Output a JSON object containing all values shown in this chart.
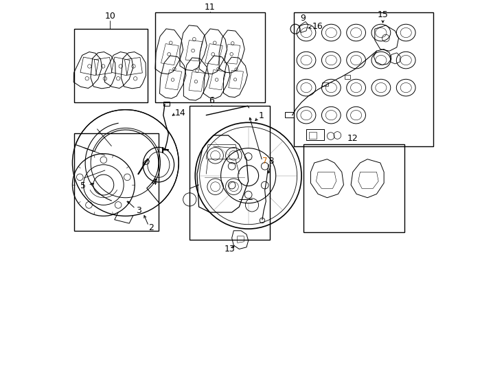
{
  "background_color": "#ffffff",
  "line_color": "#000000",
  "fig_width": 7.34,
  "fig_height": 5.4,
  "dpi": 100,
  "boxes": {
    "10": [
      0.015,
      0.73,
      0.215,
      0.93
    ],
    "11": [
      0.235,
      0.73,
      0.535,
      0.975
    ],
    "6_caliper": [
      0.33,
      0.36,
      0.545,
      0.72
    ],
    "3_hub": [
      0.015,
      0.38,
      0.24,
      0.64
    ],
    "12_clips": [
      0.64,
      0.37,
      0.915,
      0.61
    ],
    "9_seals": [
      0.615,
      0.605,
      0.995,
      0.975
    ]
  },
  "labels": {
    "1": [
      0.525,
      0.695,
      0.505,
      0.685
    ],
    "2": [
      0.295,
      0.36,
      null,
      null
    ],
    "3": [
      0.175,
      0.43,
      0.14,
      0.45
    ],
    "4": [
      0.235,
      0.54,
      0.22,
      0.525
    ],
    "5": [
      0.075,
      0.505,
      0.095,
      0.498
    ],
    "6": [
      0.39,
      0.705,
      0.39,
      0.66
    ],
    "7": [
      0.535,
      0.555,
      0.525,
      0.545
    ],
    "8": [
      0.55,
      0.555,
      0.545,
      0.5
    ],
    "9": [
      0.635,
      0.61,
      null,
      null
    ],
    "10": [
      0.113,
      0.955,
      0.113,
      0.935
    ],
    "11": [
      0.385,
      0.965,
      0.385,
      0.975
    ],
    "12": [
      0.775,
      0.615,
      null,
      null
    ],
    "13": [
      0.455,
      0.33,
      0.465,
      0.345
    ],
    "14": [
      0.305,
      0.695,
      0.295,
      0.68
    ],
    "15": [
      0.84,
      0.89,
      0.815,
      0.875
    ],
    "16": [
      0.66,
      0.935,
      0.64,
      0.935
    ]
  }
}
